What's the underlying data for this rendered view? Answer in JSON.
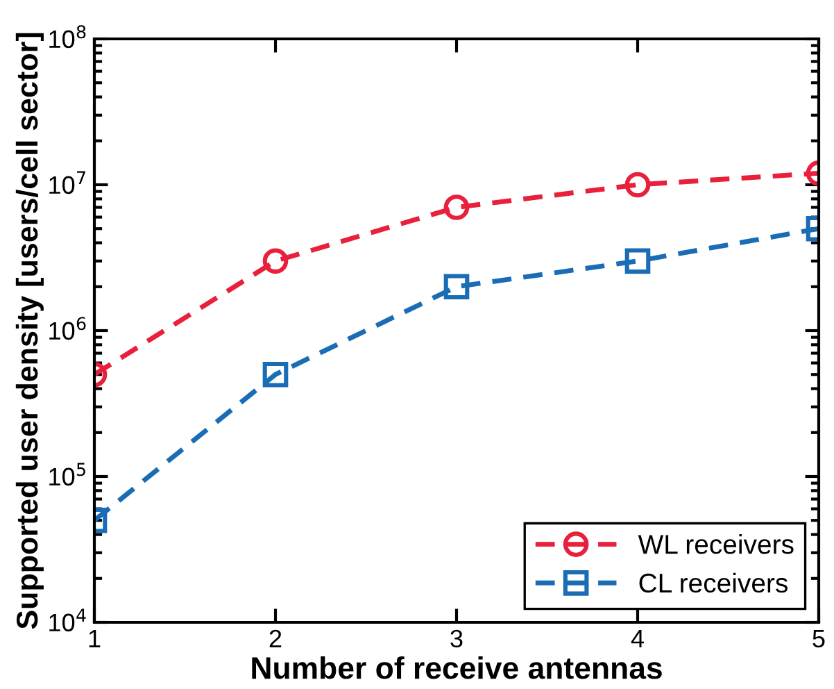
{
  "chart_data": {
    "type": "line",
    "xlabel": "Number of receive antennas",
    "ylabel": "Supported user density [users/cell sector]",
    "x": [
      1,
      2,
      3,
      4,
      5
    ],
    "series": [
      {
        "name": "WL receivers",
        "color": "#e8203c",
        "values": [
          500000,
          3000000,
          7000000,
          10000000,
          12000000
        ],
        "marker": "circle"
      },
      {
        "name": "CL receivers",
        "color": "#1a6db5",
        "values": [
          50000,
          500000,
          2000000,
          3000000,
          5000000
        ],
        "marker": "square"
      }
    ],
    "log": "y",
    "xlim": [
      1,
      5
    ],
    "xticks": [
      1,
      2,
      3,
      4,
      5
    ],
    "ylim": [
      10000,
      100000000
    ],
    "yticks": [
      {
        "value": 10000,
        "label": "10$^{4}$"
      },
      {
        "value": 100000,
        "label": "10$^{5}$"
      },
      {
        "value": 1000000,
        "label": "10$^{6}$"
      },
      {
        "value": 10000000,
        "label": "10$^{7}$"
      },
      {
        "value": 100000000,
        "label": "10$^{8}$"
      }
    ],
    "line_style": "dashed",
    "legend": "bottom right",
    "grid": false
  }
}
